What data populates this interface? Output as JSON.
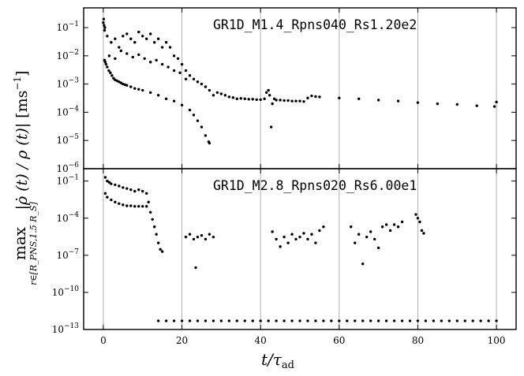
{
  "chart_data": [
    {
      "type": "scatter",
      "title": "GR1D_M1.4_Rpns040_Rs1.20e2",
      "xlabel": "t/τ_ad",
      "ylabel": "max_{r∈[R_PNS,1.5 R_S]} |ρ̇(t)/ρ(t)| [ms⁻¹]",
      "xlim": [
        -5,
        105
      ],
      "ylim": [
        1e-06,
        0.5
      ],
      "yscale": "log",
      "x_ticks": [
        "0",
        "20",
        "40",
        "60",
        "80",
        "100"
      ],
      "y_ticks": [
        "10^-6",
        "10^-5",
        "10^-4",
        "10^-3",
        "10^-2",
        "10^-1"
      ],
      "grid": "vertical lines at x = 20, 40, 60, 80, 100",
      "series": [
        {
          "points": [
            [
              0.0,
              0.15
            ],
            [
              0.1,
              0.2
            ],
            [
              0.2,
              0.12
            ],
            [
              0.3,
              0.08
            ],
            [
              0.4,
              0.1
            ],
            [
              0.3,
              0.007
            ],
            [
              0.5,
              0.006
            ],
            [
              0.7,
              0.005
            ],
            [
              1.0,
              0.004
            ],
            [
              1.4,
              0.003
            ],
            [
              1.8,
              0.0025
            ],
            [
              2.2,
              0.002
            ],
            [
              2.6,
              0.0016
            ],
            [
              3.0,
              0.0014
            ],
            [
              3.5,
              0.0013
            ],
            [
              4.0,
              0.0012
            ],
            [
              4.5,
              0.0011
            ],
            [
              5.0,
              0.001
            ],
            [
              5.5,
              0.00095
            ],
            [
              6.0,
              0.0009
            ],
            [
              7.0,
              0.0008
            ],
            [
              8.0,
              0.0007
            ],
            [
              9.0,
              0.00065
            ],
            [
              10.0,
              0.0006
            ],
            [
              12.0,
              0.0005
            ],
            [
              14.0,
              0.0004
            ],
            [
              16.0,
              0.0003
            ],
            [
              18.0,
              0.00025
            ],
            [
              20.0,
              0.00018
            ],
            [
              22.0,
              0.00012
            ],
            [
              23.0,
              8e-05
            ],
            [
              24.0,
              5e-05
            ],
            [
              25.0,
              3e-05
            ],
            [
              26.0,
              1.5e-05
            ],
            [
              26.8,
              9e-06
            ],
            [
              27.0,
              8e-06
            ],
            [
              1.0,
              0.05
            ],
            [
              2.0,
              0.03
            ],
            [
              3.0,
              0.04
            ],
            [
              4.0,
              0.02
            ],
            [
              5.0,
              0.05
            ],
            [
              6.0,
              0.06
            ],
            [
              7.0,
              0.04
            ],
            [
              8.0,
              0.03
            ],
            [
              9.0,
              0.07
            ],
            [
              10.0,
              0.05
            ],
            [
              11.0,
              0.04
            ],
            [
              12.0,
              0.06
            ],
            [
              13.0,
              0.03
            ],
            [
              14.0,
              0.04
            ],
            [
              15.0,
              0.02
            ],
            [
              16.0,
              0.03
            ],
            [
              17.0,
              0.02
            ],
            [
              18.0,
              0.01
            ],
            [
              19.0,
              0.008
            ],
            [
              20.0,
              0.005
            ],
            [
              21.0,
              0.003
            ],
            [
              22.0,
              0.002
            ],
            [
              23.0,
              0.0015
            ],
            [
              24.0,
              0.0012
            ],
            [
              25.0,
              0.001
            ],
            [
              26.0,
              0.0008
            ],
            [
              27.0,
              0.0006
            ],
            [
              1.5,
              0.01
            ],
            [
              3.0,
              0.008
            ],
            [
              4.5,
              0.015
            ],
            [
              6.0,
              0.012
            ],
            [
              7.5,
              0.009
            ],
            [
              9.0,
              0.011
            ],
            [
              10.5,
              0.008
            ],
            [
              12.0,
              0.006
            ],
            [
              13.5,
              0.007
            ],
            [
              15.0,
              0.005
            ],
            [
              16.5,
              0.004
            ],
            [
              18.0,
              0.003
            ],
            [
              19.5,
              0.0025
            ],
            [
              21.0,
              0.0015
            ],
            [
              28.0,
              0.0004
            ],
            [
              29.0,
              0.0005
            ],
            [
              30.0,
              0.00045
            ],
            [
              31.0,
              0.0004
            ],
            [
              32.0,
              0.00035
            ],
            [
              33.0,
              0.00033
            ],
            [
              34.0,
              0.0003
            ],
            [
              35.0,
              0.00031
            ],
            [
              36.0,
              0.0003
            ],
            [
              37.0,
              0.00029
            ],
            [
              38.0,
              0.00029
            ],
            [
              39.0,
              0.00028
            ],
            [
              40.0,
              0.00028
            ],
            [
              41.0,
              0.0003
            ],
            [
              41.5,
              0.0005
            ],
            [
              42.0,
              0.0006
            ],
            [
              42.3,
              0.0004
            ],
            [
              42.7,
              3e-05
            ],
            [
              43.0,
              0.0002
            ],
            [
              43.5,
              0.0003
            ],
            [
              44.0,
              0.00027
            ],
            [
              45.0,
              0.00027
            ],
            [
              46.0,
              0.00026
            ],
            [
              47.0,
              0.00026
            ],
            [
              48.0,
              0.00025
            ],
            [
              49.0,
              0.00025
            ],
            [
              50.0,
              0.00025
            ],
            [
              51.0,
              0.00024
            ],
            [
              52.0,
              0.00032
            ],
            [
              53.0,
              0.00038
            ],
            [
              54.0,
              0.00036
            ],
            [
              55.0,
              0.00035
            ],
            [
              60.0,
              0.00032
            ],
            [
              65.0,
              0.0003
            ],
            [
              70.0,
              0.00027
            ],
            [
              75.0,
              0.00025
            ],
            [
              80.0,
              0.00022
            ],
            [
              85.0,
              0.0002
            ],
            [
              90.0,
              0.00019
            ],
            [
              95.0,
              0.00017
            ],
            [
              99.5,
              0.00016
            ],
            [
              100.0,
              0.00023
            ]
          ]
        }
      ]
    },
    {
      "type": "scatter",
      "title": "GR1D_M2.8_Rpns020_Rs6.00e1",
      "xlabel": "t/τ_ad",
      "ylabel": "max_{r∈[R_PNS,1.5 R_S]} |ρ̇(t)/ρ(t)| [ms⁻¹]",
      "xlim": [
        -5,
        105
      ],
      "ylim": [
        1e-13,
        1.0
      ],
      "yscale": "log",
      "x_ticks": [
        "0",
        "20",
        "40",
        "60",
        "80",
        "100"
      ],
      "y_ticks": [
        "10^-13",
        "10^-10",
        "10^-7",
        "10^-4",
        "10^-1"
      ],
      "grid": "vertical lines at x = 20, 40, 60, 80, 100",
      "series": [
        {
          "points": [
            [
              0.5,
              0.2
            ],
            [
              1.0,
              0.1
            ],
            [
              1.5,
              0.08
            ],
            [
              2.0,
              0.06
            ],
            [
              3.0,
              0.05
            ],
            [
              4.0,
              0.04
            ],
            [
              5.0,
              0.03
            ],
            [
              6.0,
              0.025
            ],
            [
              7.0,
              0.02
            ],
            [
              8.0,
              0.015
            ],
            [
              9.0,
              0.02
            ],
            [
              10.0,
              0.015
            ],
            [
              11.0,
              0.01
            ],
            [
              0.5,
              0.01
            ],
            [
              1.0,
              0.005
            ],
            [
              2.0,
              0.003
            ],
            [
              3.0,
              0.002
            ],
            [
              4.0,
              0.0015
            ],
            [
              5.0,
              0.0012
            ],
            [
              6.0,
              0.001
            ],
            [
              7.0,
              0.001
            ],
            [
              8.0,
              0.0009
            ],
            [
              9.0,
              0.0009
            ],
            [
              10.0,
              0.0009
            ],
            [
              11.0,
              0.0009
            ],
            [
              11.5,
              0.002
            ],
            [
              12.0,
              0.0003
            ],
            [
              12.5,
              8e-05
            ],
            [
              13.0,
              2e-05
            ],
            [
              13.5,
              5e-06
            ],
            [
              14.0,
              1e-06
            ],
            [
              14.5,
              3e-07
            ],
            [
              15.0,
              2e-07
            ],
            [
              21.0,
              3e-06
            ],
            [
              22.0,
              5e-06
            ],
            [
              23.0,
              2e-06
            ],
            [
              23.5,
              1e-08
            ],
            [
              24.0,
              3e-06
            ],
            [
              25.0,
              4e-06
            ],
            [
              26.0,
              2e-06
            ],
            [
              27.0,
              5e-06
            ],
            [
              28.0,
              3e-06
            ],
            [
              43.0,
              8e-06
            ],
            [
              44.0,
              2e-06
            ],
            [
              45.0,
              5e-07
            ],
            [
              46.0,
              3e-06
            ],
            [
              47.0,
              1e-06
            ],
            [
              48.0,
              5e-06
            ],
            [
              49.0,
              2e-06
            ],
            [
              50.0,
              3e-06
            ],
            [
              51.0,
              6e-06
            ],
            [
              52.0,
              2e-06
            ],
            [
              53.0,
              5e-06
            ],
            [
              54.0,
              1e-06
            ],
            [
              55.0,
              1e-05
            ],
            [
              56.0,
              2e-05
            ],
            [
              63.0,
              2e-05
            ],
            [
              64.0,
              1e-06
            ],
            [
              65.0,
              5e-06
            ],
            [
              66.0,
              2e-08
            ],
            [
              67.0,
              3e-06
            ],
            [
              68.0,
              8e-06
            ],
            [
              69.0,
              2e-06
            ],
            [
              70.0,
              4e-07
            ],
            [
              71.0,
              2e-05
            ],
            [
              72.0,
              3e-05
            ],
            [
              73.0,
              1e-05
            ],
            [
              74.0,
              3e-05
            ],
            [
              75.0,
              2e-05
            ],
            [
              76.0,
              5e-05
            ],
            [
              79.5,
              0.0002
            ],
            [
              80.0,
              0.0001
            ],
            [
              80.5,
              5e-05
            ],
            [
              81.0,
              1e-05
            ],
            [
              81.5,
              6e-06
            ],
            [
              14.0,
              5e-13
            ],
            [
              16.0,
              5e-13
            ],
            [
              18.0,
              5e-13
            ],
            [
              20.0,
              5e-13
            ],
            [
              22.0,
              5e-13
            ],
            [
              24.0,
              5e-13
            ],
            [
              26.0,
              5e-13
            ],
            [
              28.0,
              5e-13
            ],
            [
              30.0,
              5e-13
            ],
            [
              32.0,
              5e-13
            ],
            [
              34.0,
              5e-13
            ],
            [
              36.0,
              5e-13
            ],
            [
              38.0,
              5e-13
            ],
            [
              40.0,
              5e-13
            ],
            [
              42.0,
              5e-13
            ],
            [
              44.0,
              5e-13
            ],
            [
              46.0,
              5e-13
            ],
            [
              48.0,
              5e-13
            ],
            [
              50.0,
              5e-13
            ],
            [
              52.0,
              5e-13
            ],
            [
              54.0,
              5e-13
            ],
            [
              56.0,
              5e-13
            ],
            [
              58.0,
              5e-13
            ],
            [
              60.0,
              5e-13
            ],
            [
              62.0,
              5e-13
            ],
            [
              64.0,
              5e-13
            ],
            [
              66.0,
              5e-13
            ],
            [
              68.0,
              5e-13
            ],
            [
              70.0,
              5e-13
            ],
            [
              72.0,
              5e-13
            ],
            [
              74.0,
              5e-13
            ],
            [
              76.0,
              5e-13
            ],
            [
              78.0,
              5e-13
            ],
            [
              80.0,
              5e-13
            ],
            [
              82.0,
              5e-13
            ],
            [
              84.0,
              5e-13
            ],
            [
              86.0,
              5e-13
            ],
            [
              88.0,
              5e-13
            ],
            [
              90.0,
              5e-13
            ],
            [
              92.0,
              5e-13
            ],
            [
              94.0,
              5e-13
            ],
            [
              96.0,
              5e-13
            ],
            [
              98.0,
              5e-13
            ],
            [
              100.0,
              5e-13
            ]
          ]
        }
      ]
    }
  ],
  "labels": {
    "top_title": "GR1D_M1.4_Rpns040_Rs1.20e2",
    "bottom_title": "GR1D_M2.8_Rpns020_Rs6.00e1",
    "xlabel_main": "t/τ",
    "xlabel_sub": "ad",
    "ylabel_max": "max",
    "ylabel_range": "r∈[R_PNS,1.5 R_S]",
    "ylabel_expr": "|ρ̇ (t) / ρ (t)|",
    "ylabel_unit": "[ms",
    "ylabel_unit_exp": "−1",
    "ylabel_unit_close": "]",
    "x_tick_labels": [
      "0",
      "20",
      "40",
      "60",
      "80",
      "100"
    ]
  }
}
